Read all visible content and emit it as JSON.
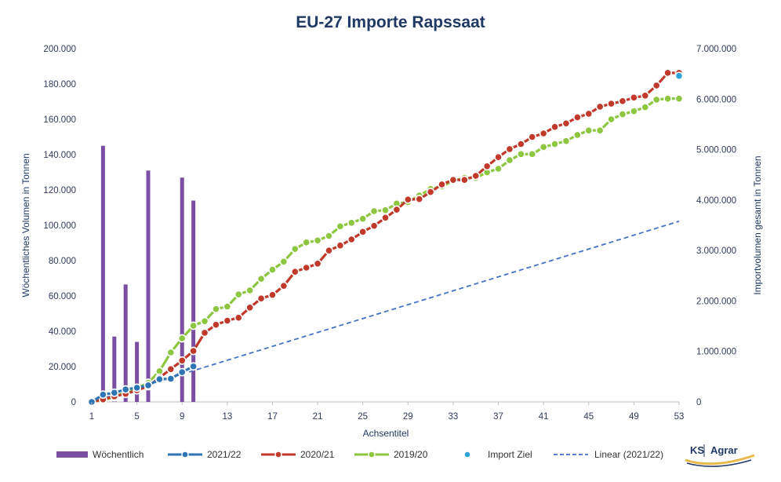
{
  "chart_data": {
    "type": "bar+line",
    "title": "EU-27 Importe Rapssaat",
    "xlabel": "Achsentitel",
    "ylabel_left": "Wöchentliches Volumen in Tonnen",
    "ylabel_right": "Importvolumen gesamt in Tonnen",
    "x_range": [
      1,
      53
    ],
    "x_ticks": [
      "1",
      "5",
      "9",
      "13",
      "17",
      "21",
      "25",
      "29",
      "33",
      "37",
      "41",
      "45",
      "49",
      "53"
    ],
    "y_left_range": [
      0,
      200000
    ],
    "y_left_ticks": [
      "0",
      "20.000",
      "40.000",
      "60.000",
      "80.000",
      "100.000",
      "120.000",
      "140.000",
      "160.000",
      "180.000",
      "200.000"
    ],
    "y_right_range": [
      0,
      7000000
    ],
    "y_right_ticks": [
      "0",
      "1.000.000",
      "2.000.000",
      "3.000.000",
      "4.000.000",
      "5.000.000",
      "6.000.000",
      "7.000.000"
    ],
    "bars": {
      "name": "Wöchentlich",
      "color": "#7a4fa3",
      "weeks": [
        2,
        3,
        4,
        5,
        6,
        9,
        10
      ],
      "values": [
        145000,
        37000,
        66500,
        34000,
        131000,
        127000,
        114000
      ]
    },
    "series": [
      {
        "name": "2021/22",
        "color": "#2e75b6",
        "x": [
          1,
          2,
          3,
          4,
          5,
          6,
          7,
          8,
          9,
          10
        ],
        "values": [
          0,
          145000,
          182000,
          248000,
          282000,
          330000,
          450000,
          460000,
          590000,
          704000
        ]
      },
      {
        "name": "2020/21",
        "color": "#c0392b",
        "x": [
          1,
          2,
          3,
          4,
          5,
          6,
          7,
          8,
          9,
          10,
          11,
          12,
          13,
          14,
          15,
          16,
          17,
          18,
          19,
          20,
          21,
          22,
          23,
          24,
          25,
          26,
          27,
          28,
          29,
          30,
          31,
          32,
          33,
          34,
          35,
          36,
          37,
          38,
          39,
          40,
          41,
          42,
          43,
          44,
          45,
          46,
          47,
          48,
          49,
          50,
          51,
          52,
          53
        ],
        "values": [
          0,
          50000,
          110000,
          160000,
          230000,
          310000,
          480000,
          650000,
          820000,
          1010000,
          1370000,
          1530000,
          1610000,
          1670000,
          1870000,
          2050000,
          2120000,
          2300000,
          2580000,
          2660000,
          2740000,
          3000000,
          3100000,
          3220000,
          3370000,
          3490000,
          3650000,
          3810000,
          4010000,
          4020000,
          4160000,
          4310000,
          4400000,
          4400000,
          4480000,
          4670000,
          4850000,
          5010000,
          5110000,
          5250000,
          5320000,
          5450000,
          5520000,
          5640000,
          5710000,
          5850000,
          5910000,
          5960000,
          6030000,
          6070000,
          6270000,
          6520000,
          6520000
        ]
      },
      {
        "name": "2019/20",
        "color": "#8dc63f",
        "x": [
          1,
          2,
          3,
          4,
          5,
          6,
          7,
          8,
          9,
          10,
          11,
          12,
          13,
          14,
          15,
          16,
          17,
          18,
          19,
          20,
          21,
          22,
          23,
          24,
          25,
          26,
          27,
          28,
          29,
          30,
          31,
          32,
          33,
          34,
          35,
          36,
          37,
          38,
          39,
          40,
          41,
          42,
          43,
          44,
          45,
          46,
          47,
          48,
          49,
          50,
          51,
          52,
          53
        ],
        "values": [
          0,
          40000,
          90000,
          200000,
          270000,
          380000,
          610000,
          980000,
          1260000,
          1510000,
          1600000,
          1840000,
          1890000,
          2130000,
          2210000,
          2440000,
          2620000,
          2780000,
          3030000,
          3160000,
          3200000,
          3290000,
          3480000,
          3550000,
          3630000,
          3780000,
          3800000,
          3930000,
          3960000,
          4090000,
          4220000,
          4270000,
          4380000,
          4440000,
          4440000,
          4550000,
          4620000,
          4790000,
          4910000,
          4910000,
          5050000,
          5110000,
          5170000,
          5290000,
          5380000,
          5380000,
          5600000,
          5700000,
          5760000,
          5840000,
          5990000,
          6010000,
          6010000
        ]
      }
    ],
    "import_ziel": {
      "name": "Import Ziel",
      "color": "#2ea3d5",
      "x": 53,
      "value": 6460000
    },
    "linear_trend": {
      "name": "Linear (2021/22)",
      "color": "#4472c4",
      "x": [
        1,
        53
      ],
      "values": [
        0,
        3580000
      ]
    },
    "legend": [
      "Wöchentlich",
      "2021/22",
      "2020/21",
      "2019/20",
      "Import Ziel",
      "Linear (2021/22)"
    ],
    "logo_text": {
      "ks": "KS",
      "agrar": "Agrar"
    }
  }
}
